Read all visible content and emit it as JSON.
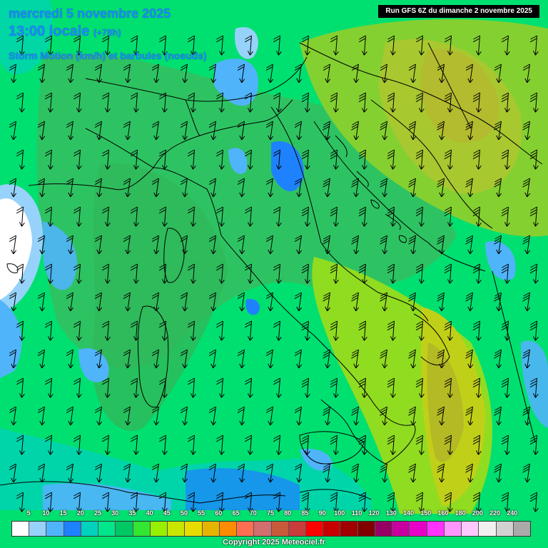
{
  "header": {
    "date_line": "mercredi 5 novembre 2025",
    "time_line": "13:00 locale",
    "lead_time": "(+78h)",
    "parameter": "Storm Motion (km/h) et barbules (noeuds)"
  },
  "run_info": "Run GFS 6Z du dimanche 2 novembre 2025",
  "legend": {
    "labels": [
      "5",
      "10",
      "15",
      "20",
      "25",
      "30",
      "35",
      "40",
      "45",
      "50",
      "55",
      "60",
      "65",
      "70",
      "75",
      "80",
      "85",
      "90",
      "100",
      "110",
      "120",
      "130",
      "140",
      "150",
      "160",
      "180",
      "200",
      "220",
      "240"
    ],
    "colors": [
      "#ffffff",
      "#96d2fa",
      "#50b4fa",
      "#1e82ff",
      "#00d2be",
      "#00e68c",
      "#00c864",
      "#32e632",
      "#96f000",
      "#c8e600",
      "#e6dc00",
      "#e6b400",
      "#ff8c00",
      "#ff6e50",
      "#d26e6e",
      "#c85a3c",
      "#c83c3c",
      "#ff0000",
      "#c80000",
      "#a00000",
      "#800000",
      "#960064",
      "#c800a0",
      "#e600c8",
      "#ff32ff",
      "#ff96ff",
      "#ffc8ff",
      "#f0f0f0",
      "#d2d2d2",
      "#aaaaaa"
    ]
  },
  "copyright": "Copyright 2025 Meteociel.fr",
  "colors": {
    "title": "#1a8cff",
    "field_low": "#00e070",
    "field_mid": "#33c060",
    "field_high": "#a8d820"
  },
  "map": {
    "wind_direction": "north-northeast flow (barbs pointing south-southwest)"
  }
}
